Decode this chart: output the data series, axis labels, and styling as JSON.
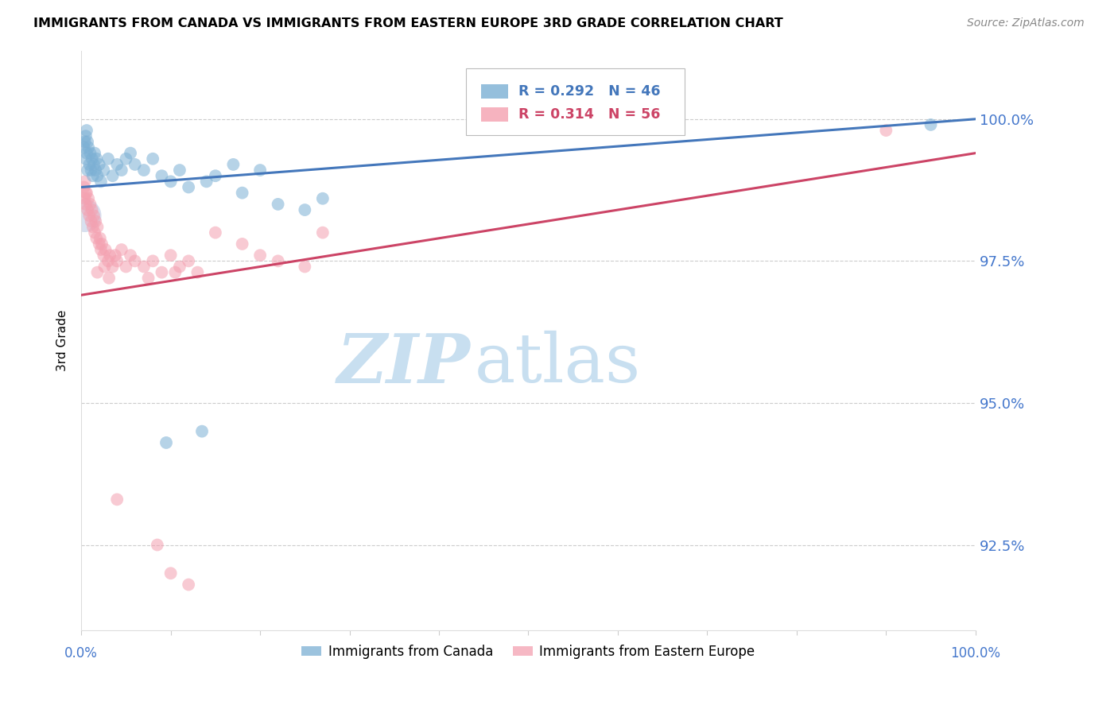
{
  "title": "IMMIGRANTS FROM CANADA VS IMMIGRANTS FROM EASTERN EUROPE 3RD GRADE CORRELATION CHART",
  "source": "Source: ZipAtlas.com",
  "ylabel": "3rd Grade",
  "xlim": [
    0.0,
    100.0
  ],
  "ylim": [
    91.0,
    101.2
  ],
  "yticks": [
    92.5,
    95.0,
    97.5,
    100.0
  ],
  "ytick_labels": [
    "92.5%",
    "95.0%",
    "97.5%",
    "100.0%"
  ],
  "blue_R": 0.292,
  "blue_N": 46,
  "pink_R": 0.314,
  "pink_N": 56,
  "blue_color": "#7BAFD4",
  "pink_color": "#F4A0B0",
  "blue_line_color": "#4477BB",
  "pink_line_color": "#CC4466",
  "watermark_zip": "ZIP",
  "watermark_atlas": "atlas",
  "watermark_color_zip": "#C8DFF0",
  "watermark_color_atlas": "#C8DFF0",
  "legend_label_blue": "Immigrants from Canada",
  "legend_label_pink": "Immigrants from Eastern Europe",
  "blue_line_y0": 98.8,
  "blue_line_y1": 100.0,
  "pink_line_y0": 96.9,
  "pink_line_y1": 99.4,
  "blue_points": [
    [
      0.3,
      99.5
    ],
    [
      0.4,
      99.6
    ],
    [
      0.5,
      99.3
    ],
    [
      0.6,
      99.4
    ],
    [
      0.7,
      99.1
    ],
    [
      0.8,
      99.5
    ],
    [
      0.9,
      99.2
    ],
    [
      1.0,
      99.4
    ],
    [
      1.1,
      99.1
    ],
    [
      1.2,
      99.3
    ],
    [
      1.3,
      99.0
    ],
    [
      1.4,
      99.2
    ],
    [
      1.5,
      99.4
    ],
    [
      1.6,
      99.1
    ],
    [
      1.7,
      99.3
    ],
    [
      1.8,
      99.0
    ],
    [
      2.0,
      99.2
    ],
    [
      2.2,
      98.9
    ],
    [
      2.5,
      99.1
    ],
    [
      3.0,
      99.3
    ],
    [
      3.5,
      99.0
    ],
    [
      4.0,
      99.2
    ],
    [
      4.5,
      99.1
    ],
    [
      5.0,
      99.3
    ],
    [
      5.5,
      99.4
    ],
    [
      6.0,
      99.2
    ],
    [
      7.0,
      99.1
    ],
    [
      8.0,
      99.3
    ],
    [
      9.0,
      99.0
    ],
    [
      10.0,
      98.9
    ],
    [
      11.0,
      99.1
    ],
    [
      12.0,
      98.8
    ],
    [
      14.0,
      98.9
    ],
    [
      15.0,
      99.0
    ],
    [
      17.0,
      99.2
    ],
    [
      18.0,
      98.7
    ],
    [
      20.0,
      99.1
    ],
    [
      22.0,
      98.5
    ],
    [
      25.0,
      98.4
    ],
    [
      27.0,
      98.6
    ],
    [
      9.5,
      94.3
    ],
    [
      13.5,
      94.5
    ],
    [
      95.0,
      99.9
    ],
    [
      0.5,
      99.7
    ],
    [
      0.6,
      99.8
    ],
    [
      0.7,
      99.6
    ]
  ],
  "pink_points": [
    [
      0.3,
      98.8
    ],
    [
      0.4,
      98.6
    ],
    [
      0.5,
      98.5
    ],
    [
      0.6,
      98.7
    ],
    [
      0.7,
      98.4
    ],
    [
      0.8,
      98.6
    ],
    [
      0.9,
      98.3
    ],
    [
      1.0,
      98.5
    ],
    [
      1.1,
      98.2
    ],
    [
      1.2,
      98.4
    ],
    [
      1.3,
      98.1
    ],
    [
      1.4,
      98.3
    ],
    [
      1.5,
      98.0
    ],
    [
      1.6,
      98.2
    ],
    [
      1.7,
      97.9
    ],
    [
      1.8,
      98.1
    ],
    [
      2.0,
      97.8
    ],
    [
      2.1,
      97.9
    ],
    [
      2.2,
      97.7
    ],
    [
      2.3,
      97.8
    ],
    [
      2.5,
      97.6
    ],
    [
      2.7,
      97.7
    ],
    [
      3.0,
      97.5
    ],
    [
      3.2,
      97.6
    ],
    [
      3.5,
      97.4
    ],
    [
      3.8,
      97.6
    ],
    [
      4.0,
      97.5
    ],
    [
      4.5,
      97.7
    ],
    [
      5.0,
      97.4
    ],
    [
      5.5,
      97.6
    ],
    [
      6.0,
      97.5
    ],
    [
      7.0,
      97.4
    ],
    [
      8.0,
      97.5
    ],
    [
      9.0,
      97.3
    ],
    [
      10.0,
      97.6
    ],
    [
      11.0,
      97.4
    ],
    [
      12.0,
      97.5
    ],
    [
      13.0,
      97.3
    ],
    [
      15.0,
      98.0
    ],
    [
      18.0,
      97.8
    ],
    [
      20.0,
      97.6
    ],
    [
      22.0,
      97.5
    ],
    [
      25.0,
      97.4
    ],
    [
      27.0,
      98.0
    ],
    [
      7.5,
      97.2
    ],
    [
      10.5,
      97.3
    ],
    [
      4.0,
      93.3
    ],
    [
      8.5,
      92.5
    ],
    [
      10.0,
      92.0
    ],
    [
      12.0,
      91.8
    ],
    [
      0.4,
      98.9
    ],
    [
      0.5,
      98.7
    ],
    [
      90.0,
      99.8
    ],
    [
      1.8,
      97.3
    ],
    [
      2.6,
      97.4
    ],
    [
      3.1,
      97.2
    ]
  ],
  "large_dot_x": 0.4,
  "large_dot_y": 98.3,
  "large_dot_color": "#AABBDD",
  "large_dot_size": 900
}
